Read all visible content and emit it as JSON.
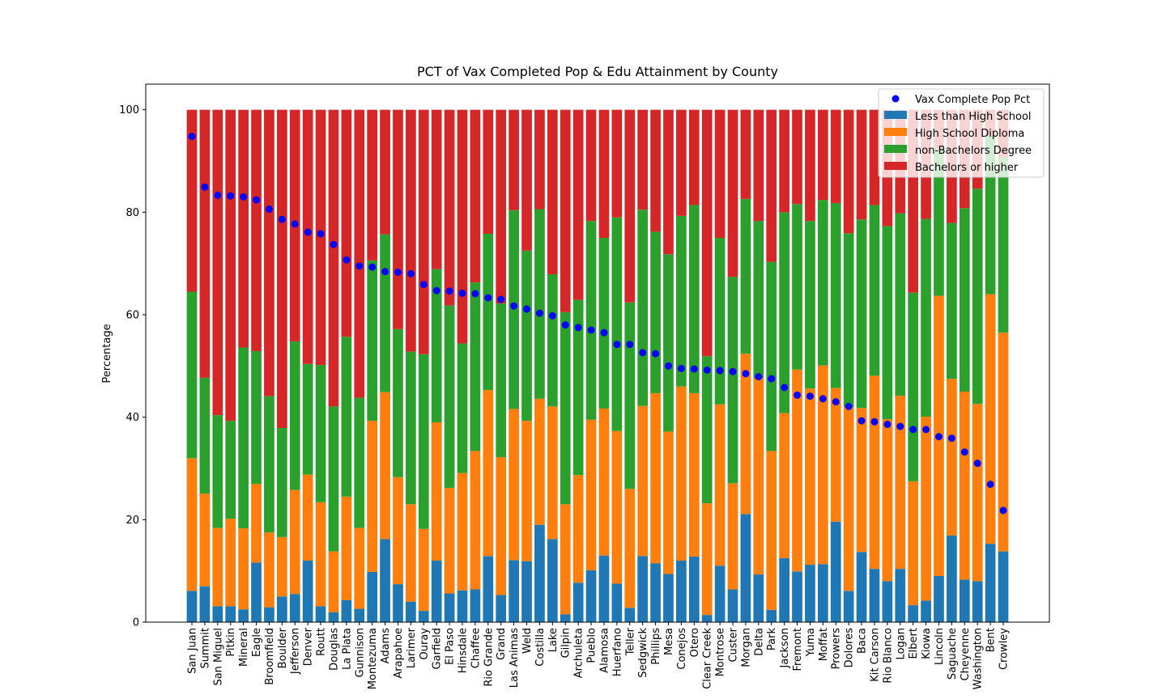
{
  "chart_data": {
    "type": "bar",
    "stacked": true,
    "title": "PCT of Vax Completed Pop & Edu Attainment by County",
    "xlabel": "",
    "ylabel": "Percentage",
    "ylim": [
      0,
      105
    ],
    "yticks": [
      0,
      20,
      40,
      60,
      80,
      100
    ],
    "grid": false,
    "legend_position": "top-right",
    "categories": [
      "San Juan",
      "Summit",
      "San Miguel",
      "Pitkin",
      "Mineral",
      "Eagle",
      "Broomfield",
      "Boulder",
      "Jefferson",
      "Denver",
      "Routt",
      "Douglas",
      "La Plata",
      "Gunnison",
      "Montezuma",
      "Adams",
      "Arapahoe",
      "Larimer",
      "Ouray",
      "Garfield",
      "El Paso",
      "Hinsdale",
      "Chaffee",
      "Rio Grande",
      "Grand",
      "Las Animas",
      "Weld",
      "Costilla",
      "Lake",
      "Gilpin",
      "Archuleta",
      "Pueblo",
      "Alamosa",
      "Huerfano",
      "Teller",
      "Sedgwick",
      "Phillips",
      "Mesa",
      "Conejos",
      "Otero",
      "Clear Creek",
      "Montrose",
      "Custer",
      "Morgan",
      "Delta",
      "Park",
      "Jackson",
      "Fremont",
      "Yuma",
      "Moffat",
      "Prowers",
      "Dolores",
      "Baca",
      "Kit Carson",
      "Rio Blanco",
      "Logan",
      "Elbert",
      "Kiowa",
      "Lincoln",
      "Saguache",
      "Cheyenne",
      "Washington",
      "Bent",
      "Crowley"
    ],
    "series": [
      {
        "name": "Less than High School",
        "color": "#1f77b4",
        "values": [
          6.1,
          7.0,
          3.1,
          3.1,
          2.5,
          11.6,
          2.9,
          5.0,
          5.5,
          12.0,
          3.1,
          1.9,
          4.3,
          2.6,
          9.8,
          16.2,
          7.4,
          4.0,
          2.2,
          12.0,
          5.6,
          6.2,
          6.4,
          12.9,
          5.3,
          12.1,
          11.9,
          19.0,
          16.2,
          1.5,
          7.7,
          10.1,
          13.0,
          7.5,
          2.8,
          12.9,
          11.5,
          9.4,
          12.0,
          12.8,
          1.4,
          11.0,
          6.4,
          21.1,
          9.3,
          2.4,
          12.5,
          9.9,
          11.2,
          11.3,
          19.6,
          6.1,
          13.7,
          10.4,
          8.0,
          10.4,
          3.3,
          4.2,
          9.0,
          16.9,
          8.3,
          8.0,
          15.3,
          13.8
        ]
      },
      {
        "name": "High School Diploma",
        "color": "#ff7f0e",
        "values": [
          25.9,
          18.1,
          15.3,
          17.1,
          15.8,
          15.4,
          14.6,
          11.6,
          20.3,
          16.8,
          20.3,
          11.9,
          20.2,
          15.8,
          29.5,
          28.7,
          20.9,
          19.0,
          16.0,
          27.0,
          20.6,
          22.9,
          27.0,
          32.4,
          26.9,
          29.5,
          27.4,
          24.6,
          25.9,
          21.5,
          21.0,
          29.4,
          28.7,
          29.8,
          23.2,
          29.3,
          33.2,
          27.8,
          34.0,
          31.9,
          21.8,
          31.5,
          20.7,
          31.3,
          38.3,
          31.0,
          28.3,
          39.4,
          34.4,
          38.8,
          26.1,
          35.9,
          28.1,
          37.7,
          31.6,
          33.8,
          24.2,
          35.9,
          54.7,
          30.6,
          36.7,
          34.6,
          48.7,
          42.7
        ]
      },
      {
        "name": "non-Bachelors Degree",
        "color": "#2ca02c",
        "values": [
          32.5,
          22.6,
          22.0,
          19.1,
          35.3,
          25.9,
          26.6,
          21.3,
          29.0,
          21.6,
          26.8,
          28.3,
          31.2,
          25.4,
          31.3,
          30.8,
          28.9,
          29.8,
          34.1,
          29.9,
          35.6,
          25.3,
          32.9,
          30.5,
          30.0,
          38.8,
          33.2,
          37.0,
          25.8,
          37.5,
          34.2,
          38.8,
          33.3,
          41.7,
          36.4,
          38.3,
          31.5,
          34.6,
          33.3,
          36.7,
          28.7,
          32.5,
          40.3,
          30.2,
          30.7,
          36.9,
          39.2,
          32.3,
          32.7,
          32.3,
          36.1,
          33.9,
          36.8,
          33.3,
          37.7,
          35.6,
          36.8,
          38.6,
          28.7,
          30.4,
          35.8,
          42.0,
          31.0,
          34.3
        ]
      },
      {
        "name": "Bachelors or higher",
        "color": "#d62728",
        "values": [
          35.5,
          52.3,
          59.6,
          60.7,
          46.4,
          47.1,
          55.9,
          62.1,
          45.2,
          49.6,
          49.8,
          57.9,
          44.3,
          56.2,
          29.4,
          24.3,
          42.8,
          47.2,
          47.7,
          31.1,
          38.2,
          45.6,
          33.7,
          24.2,
          37.8,
          19.6,
          27.5,
          19.4,
          32.1,
          39.5,
          37.1,
          21.7,
          25.0,
          21.0,
          37.6,
          19.5,
          23.8,
          28.2,
          20.7,
          18.6,
          48.1,
          25.0,
          32.6,
          17.4,
          21.7,
          29.7,
          20.0,
          18.4,
          21.7,
          17.6,
          18.2,
          24.1,
          21.4,
          18.6,
          22.7,
          20.2,
          35.7,
          21.3,
          7.6,
          22.1,
          19.2,
          15.4,
          5.0,
          9.2
        ]
      }
    ],
    "dots": {
      "name": "Vax Complete Pop Pct",
      "color": "#0000ff",
      "values": [
        94.8,
        84.9,
        83.3,
        83.2,
        83.0,
        82.4,
        80.6,
        78.6,
        77.7,
        76.1,
        75.8,
        73.7,
        70.7,
        69.5,
        69.3,
        68.4,
        68.3,
        68.0,
        65.9,
        64.7,
        64.6,
        64.2,
        64.1,
        63.3,
        63.0,
        61.7,
        61.1,
        60.3,
        59.8,
        58.0,
        57.5,
        57.0,
        56.5,
        54.2,
        54.2,
        52.6,
        52.4,
        50.0,
        49.5,
        49.4,
        49.2,
        49.1,
        48.9,
        48.5,
        47.9,
        47.5,
        45.8,
        44.3,
        44.1,
        43.6,
        43.0,
        42.1,
        39.3,
        39.1,
        38.6,
        38.2,
        37.6,
        37.6,
        36.2,
        35.9,
        33.2,
        31.0,
        26.9,
        21.8
      ]
    }
  }
}
